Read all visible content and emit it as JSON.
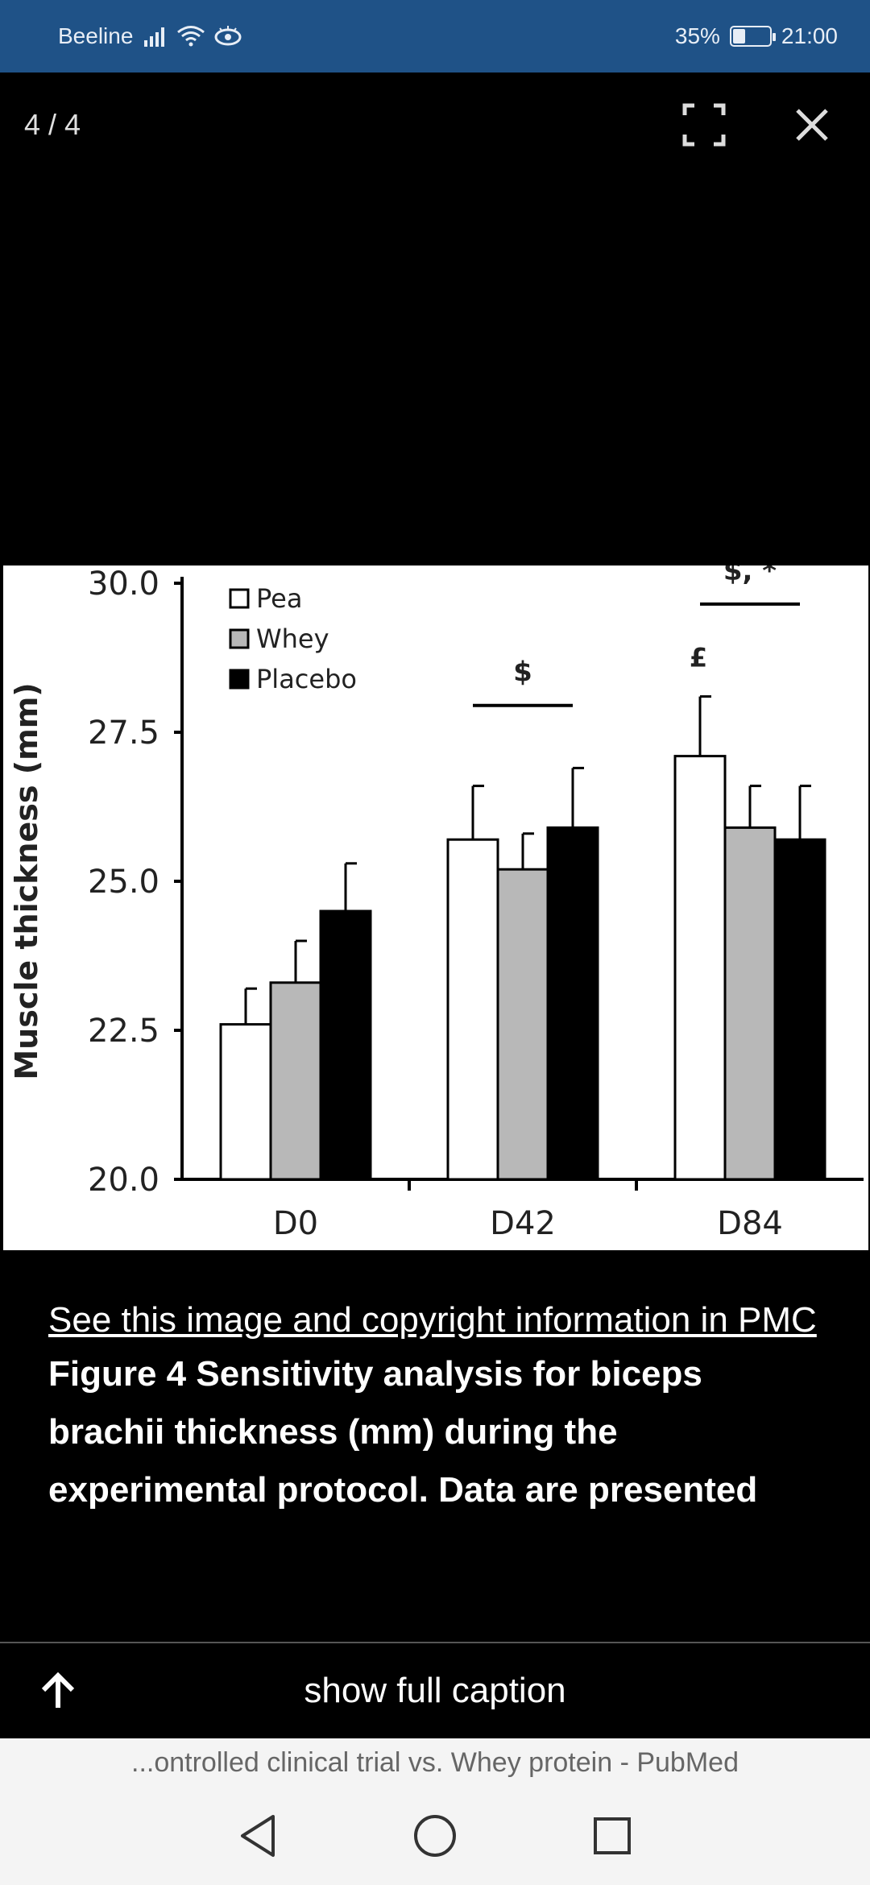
{
  "status_bar": {
    "carrier": "Beeline",
    "battery": "35%",
    "battery_level": 0.35,
    "time": "21:00",
    "icons": [
      "signal-icon",
      "wifi-icon",
      "eye-icon",
      "battery-icon"
    ]
  },
  "viewer": {
    "counter": "4 / 4",
    "fullscreen_icon": "fullscreen-icon",
    "close_icon": "close-icon"
  },
  "chart_data": {
    "type": "bar",
    "ylabel": "Muscle thickness (mm)",
    "ylim": [
      20.0,
      30.0
    ],
    "yticks": [
      "20.0",
      "22.5",
      "25.0",
      "27.5",
      "30.0"
    ],
    "categories": [
      "D0",
      "D42",
      "D84"
    ],
    "series": [
      {
        "name": "Pea",
        "color": "#ffffff",
        "values": [
          22.6,
          25.7,
          27.1
        ],
        "errors": [
          0.6,
          0.9,
          1.0
        ]
      },
      {
        "name": "Whey",
        "color": "#b8b8b8",
        "values": [
          23.3,
          25.2,
          25.9
        ],
        "errors": [
          0.7,
          0.6,
          0.7
        ]
      },
      {
        "name": "Placebo",
        "color": "#000000",
        "values": [
          24.5,
          25.9,
          25.7
        ],
        "errors": [
          0.8,
          1.0,
          0.9
        ]
      }
    ],
    "annotations": [
      {
        "text": "$",
        "category": "D42",
        "y": 27.95
      },
      {
        "text": "$, *",
        "category": "D84",
        "y": 29.65
      },
      {
        "text": "£",
        "category": "D84",
        "y": 28.6
      }
    ],
    "legend": "top-left"
  },
  "caption": {
    "link": "See this image and copyright information in PMC",
    "text": "Figure 4   Sensitivity analysis for biceps brachii thickness (mm) during the experimental protocol. Data are presented"
  },
  "caption_toggle": {
    "label": "show full caption",
    "icon": "arrow-up-icon"
  },
  "browser": {
    "url_title": "...ontrolled clinical trial vs. Whey protein - PubMed"
  },
  "nav": {
    "icons": [
      "back-icon",
      "home-icon",
      "recents-icon"
    ]
  }
}
